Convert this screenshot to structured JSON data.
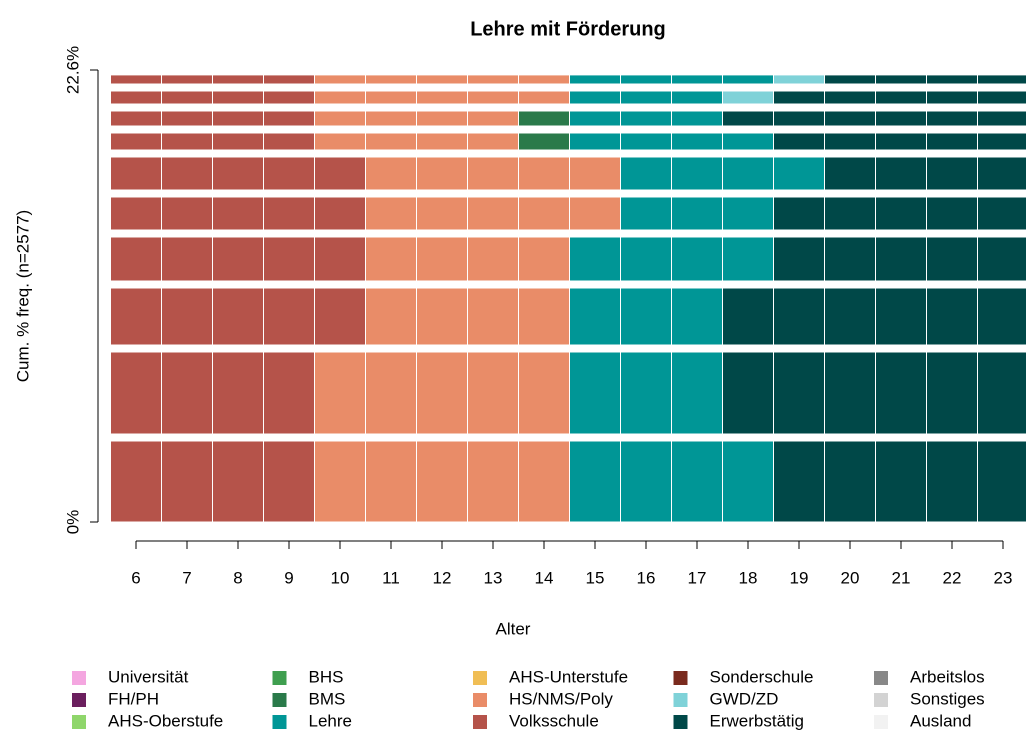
{
  "chart_data": {
    "type": "sequence-index",
    "title": "Lehre mit Förderung",
    "xlabel": "Alter",
    "ylabel": "Cum. % freq. (n=2577)",
    "categories": [
      6,
      7,
      8,
      9,
      10,
      11,
      12,
      13,
      14,
      15,
      16,
      17,
      18,
      19,
      20,
      21,
      22,
      23
    ],
    "ylim": [
      0,
      22.6
    ],
    "yticks": [
      {
        "value": 0,
        "label": "0%"
      },
      {
        "value": 22.6,
        "label": "22.6%"
      }
    ],
    "states": [
      {
        "name": "Universität",
        "color": "#f4a6e0"
      },
      {
        "name": "FH/PH",
        "color": "#6b1f5e"
      },
      {
        "name": "AHS-Oberstufe",
        "color": "#8fd66b"
      },
      {
        "name": "BHS",
        "color": "#3f9f4f"
      },
      {
        "name": "BMS",
        "color": "#2a7a4a"
      },
      {
        "name": "Lehre",
        "color": "#009696"
      },
      {
        "name": "AHS-Unterstufe",
        "color": "#f0be55"
      },
      {
        "name": "HS/NMS/Poly",
        "color": "#e98c68"
      },
      {
        "name": "Volksschule",
        "color": "#b5534a"
      },
      {
        "name": "Sonderschule",
        "color": "#7a2a1e"
      },
      {
        "name": "GWD/ZD",
        "color": "#7fd2d8"
      },
      {
        "name": "Erwerbstätig",
        "color": "#004848"
      },
      {
        "name": "Arbeitslos",
        "color": "#888888"
      },
      {
        "name": "Sonstiges",
        "color": "#d3d3d3"
      },
      {
        "name": "Ausland",
        "color": "#f2f2f2"
      }
    ],
    "sequences": [
      {
        "weight": 4.4,
        "states": [
          "Volksschule",
          "Volksschule",
          "Volksschule",
          "Volksschule",
          "HS/NMS/Poly",
          "HS/NMS/Poly",
          "HS/NMS/Poly",
          "HS/NMS/Poly",
          "HS/NMS/Poly",
          "Lehre",
          "Lehre",
          "Lehre",
          "Lehre",
          "Erwerbstätig",
          "Erwerbstätig",
          "Erwerbstätig",
          "Erwerbstätig",
          "Erwerbstätig"
        ]
      },
      {
        "weight": 4.45,
        "states": [
          "Volksschule",
          "Volksschule",
          "Volksschule",
          "Volksschule",
          "HS/NMS/Poly",
          "HS/NMS/Poly",
          "HS/NMS/Poly",
          "HS/NMS/Poly",
          "HS/NMS/Poly",
          "Lehre",
          "Lehre",
          "Lehre",
          "Erwerbstätig",
          "Erwerbstätig",
          "Erwerbstätig",
          "Erwerbstätig",
          "Erwerbstätig",
          "Erwerbstätig"
        ]
      },
      {
        "weight": 3.2,
        "states": [
          "Volksschule",
          "Volksschule",
          "Volksschule",
          "Volksschule",
          "Volksschule",
          "HS/NMS/Poly",
          "HS/NMS/Poly",
          "HS/NMS/Poly",
          "HS/NMS/Poly",
          "Lehre",
          "Lehre",
          "Lehre",
          "Erwerbstätig",
          "Erwerbstätig",
          "Erwerbstätig",
          "Erwerbstätig",
          "Erwerbstätig",
          "Erwerbstätig"
        ]
      },
      {
        "weight": 2.55,
        "states": [
          "Volksschule",
          "Volksschule",
          "Volksschule",
          "Volksschule",
          "Volksschule",
          "HS/NMS/Poly",
          "HS/NMS/Poly",
          "HS/NMS/Poly",
          "HS/NMS/Poly",
          "Lehre",
          "Lehre",
          "Lehre",
          "Lehre",
          "Erwerbstätig",
          "Erwerbstätig",
          "Erwerbstätig",
          "Erwerbstätig",
          "Erwerbstätig"
        ]
      },
      {
        "weight": 2.0,
        "states": [
          "Volksschule",
          "Volksschule",
          "Volksschule",
          "Volksschule",
          "Volksschule",
          "HS/NMS/Poly",
          "HS/NMS/Poly",
          "HS/NMS/Poly",
          "HS/NMS/Poly",
          "HS/NMS/Poly",
          "Lehre",
          "Lehre",
          "Lehre",
          "Erwerbstätig",
          "Erwerbstätig",
          "Erwerbstätig",
          "Erwerbstätig",
          "Erwerbstätig"
        ]
      },
      {
        "weight": 2.0,
        "states": [
          "Volksschule",
          "Volksschule",
          "Volksschule",
          "Volksschule",
          "Volksschule",
          "HS/NMS/Poly",
          "HS/NMS/Poly",
          "HS/NMS/Poly",
          "HS/NMS/Poly",
          "HS/NMS/Poly",
          "Lehre",
          "Lehre",
          "Lehre",
          "Lehre",
          "Erwerbstätig",
          "Erwerbstätig",
          "Erwerbstätig",
          "Erwerbstätig"
        ]
      },
      {
        "weight": 1.2,
        "states": [
          "Volksschule",
          "Volksschule",
          "Volksschule",
          "Volksschule",
          "HS/NMS/Poly",
          "HS/NMS/Poly",
          "HS/NMS/Poly",
          "HS/NMS/Poly",
          "BMS",
          "Lehre",
          "Lehre",
          "Lehre",
          "Lehre",
          "Erwerbstätig",
          "Erwerbstätig",
          "Erwerbstätig",
          "Erwerbstätig",
          "Erwerbstätig"
        ]
      },
      {
        "weight": 1.1,
        "states": [
          "Volksschule",
          "Volksschule",
          "Volksschule",
          "Volksschule",
          "HS/NMS/Poly",
          "HS/NMS/Poly",
          "HS/NMS/Poly",
          "HS/NMS/Poly",
          "BMS",
          "Lehre",
          "Lehre",
          "Lehre",
          "Erwerbstätig",
          "Erwerbstätig",
          "Erwerbstätig",
          "Erwerbstätig",
          "Erwerbstätig",
          "Erwerbstätig"
        ]
      },
      {
        "weight": 1.0,
        "states": [
          "Volksschule",
          "Volksschule",
          "Volksschule",
          "Volksschule",
          "HS/NMS/Poly",
          "HS/NMS/Poly",
          "HS/NMS/Poly",
          "HS/NMS/Poly",
          "HS/NMS/Poly",
          "Lehre",
          "Lehre",
          "Lehre",
          "GWD/ZD",
          "Erwerbstätig",
          "Erwerbstätig",
          "Erwerbstätig",
          "Erwerbstätig",
          "Erwerbstätig"
        ]
      },
      {
        "weight": 0.7,
        "states": [
          "Volksschule",
          "Volksschule",
          "Volksschule",
          "Volksschule",
          "HS/NMS/Poly",
          "HS/NMS/Poly",
          "HS/NMS/Poly",
          "HS/NMS/Poly",
          "HS/NMS/Poly",
          "Lehre",
          "Lehre",
          "Lehre",
          "Lehre",
          "GWD/ZD",
          "Erwerbstätig",
          "Erwerbstätig",
          "Erwerbstätig",
          "Erwerbstätig"
        ]
      }
    ]
  }
}
